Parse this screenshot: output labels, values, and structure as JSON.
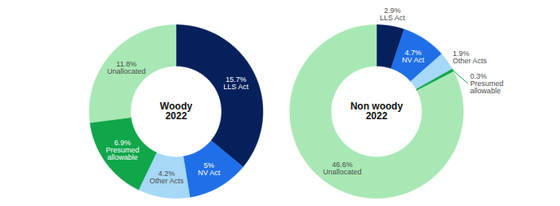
{
  "chart_data": [
    {
      "type": "pie",
      "title": "Woody 2022",
      "categories": [
        "LLS Act",
        "NV Act",
        "Other Acts",
        "Presumed allowable",
        "Unallocated"
      ],
      "values": [
        15.7,
        5,
        4.2,
        6.9,
        11.8
      ],
      "value_labels": [
        "15.7%",
        "5%",
        "4.2%",
        "6.9%",
        "11.8%"
      ],
      "colors": [
        "#06205c",
        "#1f6fe8",
        "#a6d8f7",
        "#10a64a",
        "#a8e8b4"
      ],
      "data_labels": true
    },
    {
      "type": "pie",
      "title": "Non woody 2022",
      "categories": [
        "LLS Act",
        "NV Act",
        "Other Acts",
        "Presumed allowable",
        "Unallocated"
      ],
      "values": [
        2.9,
        4.7,
        1.9,
        0.3,
        46.6
      ],
      "value_labels": [
        "2.9%",
        "4.7%",
        "1.9%",
        "0.3%",
        "46.6%"
      ],
      "colors": [
        "#06205c",
        "#1f6fe8",
        "#a6d8f7",
        "#10a64a",
        "#a8e8b4"
      ],
      "data_labels": true
    }
  ]
}
